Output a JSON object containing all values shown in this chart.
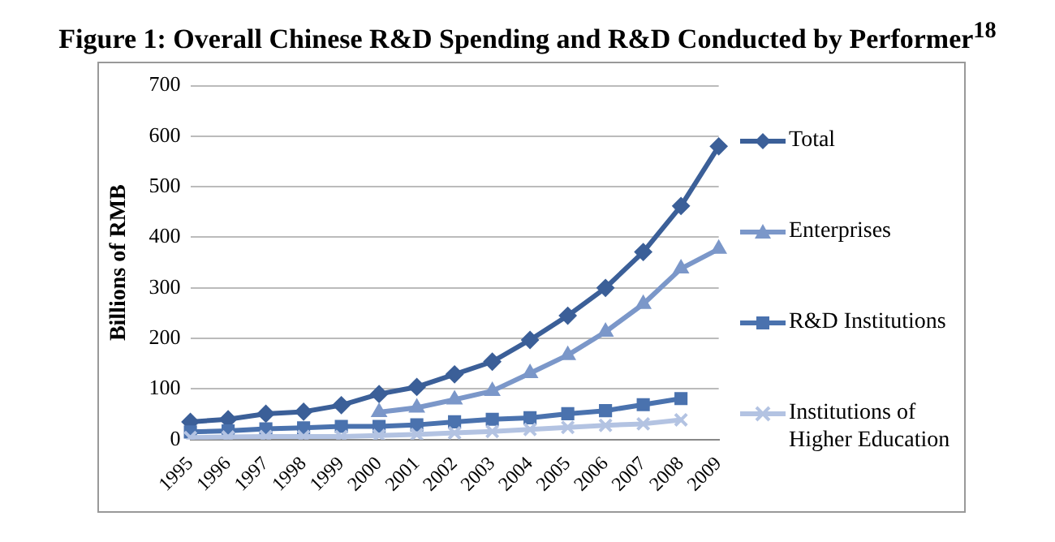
{
  "chart_data": {
    "type": "line",
    "title": "Figure 1: Overall Chinese R&D Spending and R&D Conducted by Performer$^{18}$",
    "ylabel": "Billions of RMB",
    "categories": [
      "1995",
      "1996",
      "1997",
      "1998",
      "1999",
      "2000",
      "2001",
      "2002",
      "2003",
      "2004",
      "2005",
      "2006",
      "2007",
      "2008",
      "2009"
    ],
    "series": [
      {
        "name": "Total",
        "color": "#3b5f98",
        "marker": "diamond",
        "values": [
          35,
          40,
          51,
          55,
          68,
          90,
          104,
          129,
          154,
          197,
          245,
          300,
          371,
          462,
          580
        ]
      },
      {
        "name": "Enterprises",
        "color": "#7b97c9",
        "marker": "triangle",
        "values": [
          null,
          null,
          null,
          null,
          null,
          54,
          63,
          79,
          96,
          131,
          167,
          213,
          268,
          338,
          377
        ]
      },
      {
        "name": "R&D Institutions",
        "color": "#4a72ae",
        "marker": "square",
        "values": [
          15,
          17,
          21,
          23,
          26,
          26,
          29,
          35,
          40,
          43,
          51,
          57,
          69,
          81,
          null
        ]
      },
      {
        "name": "Institutions of Higher Education",
        "color": "#b3c3e2",
        "marker": "cross",
        "values": [
          4,
          5,
          6,
          6,
          6,
          8,
          10,
          13,
          16,
          20,
          24,
          28,
          31,
          39,
          null
        ]
      }
    ],
    "ylim": [
      0,
      700
    ],
    "yticks": [
      0,
      100,
      200,
      300,
      400,
      500,
      600,
      700
    ],
    "grid": "y",
    "legend": "right"
  }
}
